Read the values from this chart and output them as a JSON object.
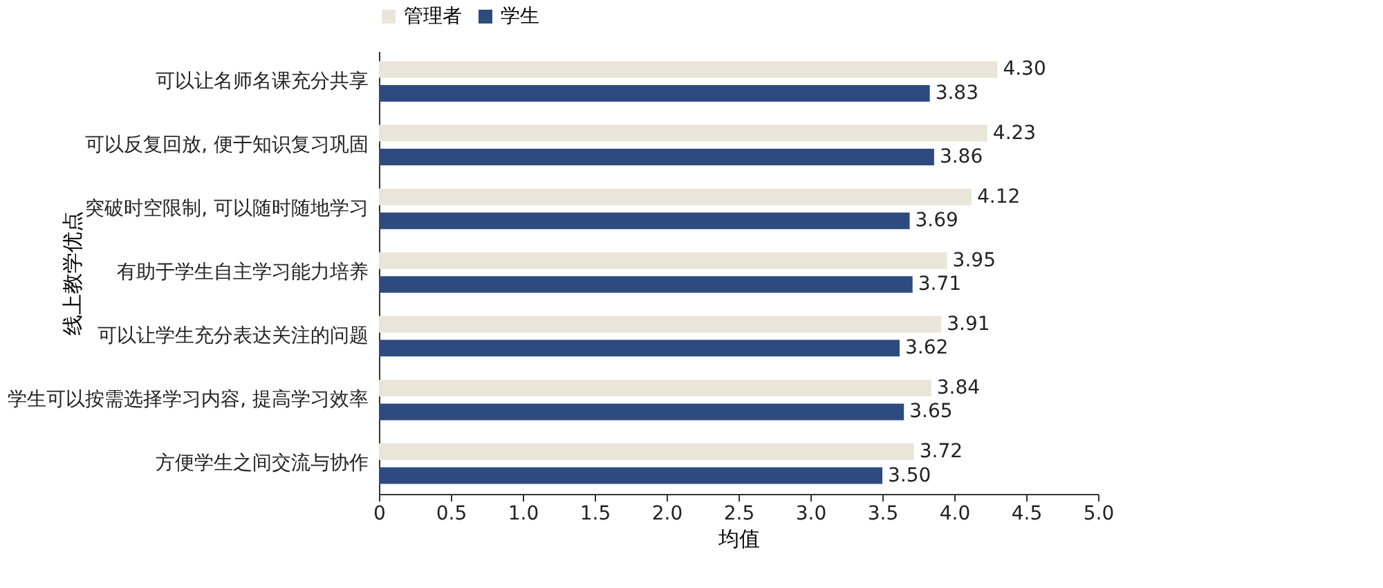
{
  "chart_data": {
    "type": "bar",
    "orientation": "horizontal",
    "ylabel": "线上教学优点",
    "xlabel": "均值",
    "categories": [
      "可以让名师名课充分共享",
      "可以反复回放, 便于知识复习巩固",
      "突破时空限制, 可以随时随地学习",
      "有助于学生自主学习能力培养",
      "可以让学生充分表达关注的问题",
      "学生可以按需选择学习内容, 提高学习效率",
      "方便学生之间交流与协作"
    ],
    "series": [
      {
        "name": "管理者",
        "color": "#e9e5d9",
        "values": [
          4.3,
          4.23,
          4.12,
          3.95,
          3.91,
          3.84,
          3.72
        ],
        "value_labels": [
          "4.30",
          "4.23",
          "4.12",
          "3.95",
          "3.91",
          "3.84",
          "3.72"
        ]
      },
      {
        "name": "学生",
        "color": "#2d4b7e",
        "values": [
          3.83,
          3.86,
          3.69,
          3.71,
          3.62,
          3.65,
          3.5
        ],
        "value_labels": [
          "3.83",
          "3.86",
          "3.69",
          "3.71",
          "3.62",
          "3.65",
          "3.50"
        ]
      }
    ],
    "xlim": [
      0,
      5
    ],
    "xticks": [
      0,
      0.5,
      {
        "value": 1,
        "label": "1.0"
      },
      1.5,
      {
        "value": 2,
        "label": "2.0"
      },
      2.5,
      {
        "value": 3,
        "label": "3.0"
      },
      3.5,
      {
        "value": 4,
        "label": "4.0"
      },
      4.5,
      {
        "value": 5,
        "label": "5.0"
      }
    ],
    "legend": "top",
    "grid": false
  }
}
